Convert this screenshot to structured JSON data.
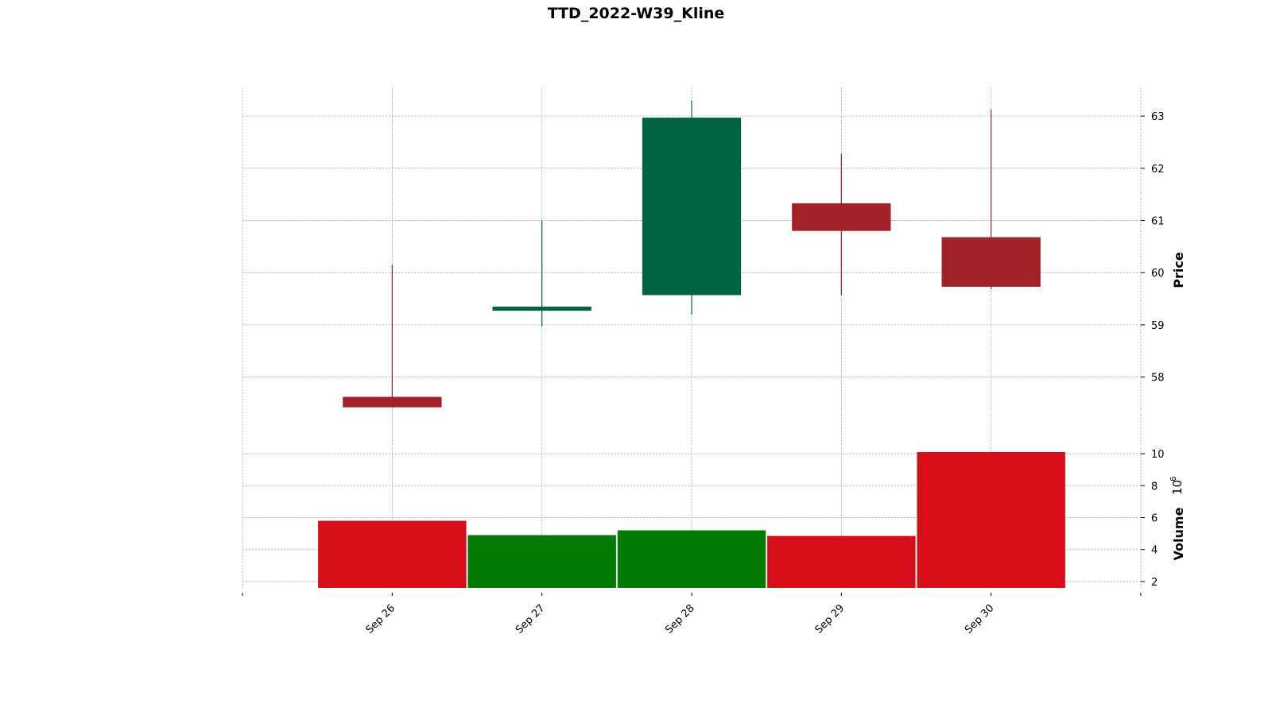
{
  "chart_data": {
    "type": "candlestick",
    "title": "TTD_2022-W39_Kline",
    "categories": [
      "Sep 26",
      "Sep 27",
      "Sep 28",
      "Sep 29",
      "Sep 30"
    ],
    "ohlc": [
      {
        "date": "Sep 26",
        "open": 57.62,
        "high": 60.15,
        "low": 57.42,
        "close": 57.42
      },
      {
        "date": "Sep 27",
        "open": 59.27,
        "high": 61.0,
        "low": 58.97,
        "close": 59.35
      },
      {
        "date": "Sep 28",
        "open": 59.57,
        "high": 63.3,
        "low": 59.2,
        "close": 62.97
      },
      {
        "date": "Sep 29",
        "open": 61.33,
        "high": 62.28,
        "low": 59.57,
        "close": 60.8
      },
      {
        "date": "Sep 30",
        "open": 60.68,
        "high": 63.13,
        "low": 59.68,
        "close": 59.73
      }
    ],
    "volume": [
      5.8,
      4.9,
      5.2,
      4.85,
      10.1
    ],
    "price_axis": {
      "label": "Price",
      "ticks": [
        "58",
        "59",
        "60",
        "61",
        "62",
        "63"
      ],
      "ylim": [
        56.7,
        63.55
      ]
    },
    "volume_axis": {
      "label": "Volume",
      "multiplier": "10",
      "exponent": "6",
      "ticks": [
        "2",
        "4",
        "6",
        "8",
        "10"
      ],
      "ylim": [
        1.6,
        10.4
      ]
    },
    "colors": {
      "up": "#006340",
      "down": "#a02128",
      "volume_up": "#007a00",
      "volume_down": "#d50e19"
    },
    "grid": true
  }
}
